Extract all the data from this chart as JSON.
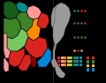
{
  "background": "#000000",
  "party_colors": {
    "Labour": "#DC241F",
    "Labour_light": "#FF9999",
    "PlaidCymru": "#3F8428",
    "PlaidCymru_light": "#78C860",
    "LibDem": "#FDBB30",
    "Conservative": "#0087DC",
    "Orange": "#FF8C00",
    "Teal": "#009090",
    "DarkGreen": "#1A5C1A"
  },
  "legend_colors": [
    "#DC241F",
    "#FF9999",
    "#FF8C00",
    "#FDBB30",
    "#78C860",
    "#3F8428",
    "#0087DC",
    "#009090"
  ],
  "right_legend_colors": [
    "#DC241F",
    "#3F8428",
    "#FDBB30",
    "#0087DC"
  ],
  "dot_rows": [
    {
      "y": 82,
      "colors": [
        "#0087DC",
        "#3F8428",
        "#DC241F",
        "#DC241F"
      ]
    },
    {
      "y": 68,
      "colors": [
        "#DC241F",
        "#0087DC",
        "#3F8428",
        "#DC241F"
      ]
    },
    {
      "y": 52,
      "colors": [
        "#3F8428",
        "#3F8428",
        "#3F8428",
        "#3F8428"
      ]
    },
    {
      "y": 37,
      "colors": [
        "#FDBB30",
        "#DC241F",
        "#FDBB30"
      ]
    }
  ]
}
